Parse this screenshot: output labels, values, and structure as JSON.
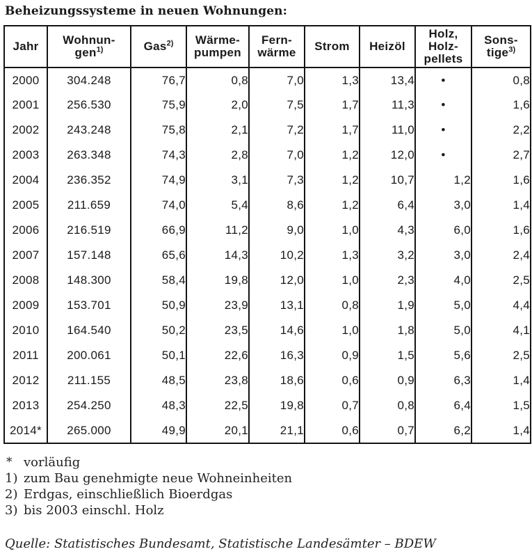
{
  "title": "Beheizungssysteme in neuen Wohnungen:",
  "table": {
    "columns": [
      {
        "key": "jahr",
        "label": "Jahr",
        "sup": ""
      },
      {
        "key": "wohnungen",
        "label": "Wohnun-\ngen",
        "sup": "1)"
      },
      {
        "key": "gas",
        "label": "Gas",
        "sup": "2)"
      },
      {
        "key": "waermepumpen",
        "label": "Wärme-\npumpen",
        "sup": ""
      },
      {
        "key": "fernwaerme",
        "label": "Fern-\nwärme",
        "sup": ""
      },
      {
        "key": "strom",
        "label": "Strom",
        "sup": ""
      },
      {
        "key": "heizoel",
        "label": "Heizöl",
        "sup": ""
      },
      {
        "key": "holz",
        "label": "Holz,\nHolz-\npellets",
        "sup": ""
      },
      {
        "key": "sonstige",
        "label": "Sons-\ntige",
        "sup": "3)"
      }
    ],
    "no_data_symbol": "•",
    "rows": [
      [
        "2000",
        "304.248",
        "76,7",
        "0,8",
        "7,0",
        "1,3",
        "13,4",
        "•",
        "0,8"
      ],
      [
        "2001",
        "256.530",
        "75,9",
        "2,0",
        "7,5",
        "1,7",
        "11,3",
        "•",
        "1,6"
      ],
      [
        "2002",
        "243.248",
        "75,8",
        "2,1",
        "7,2",
        "1,7",
        "11,0",
        "•",
        "2,2"
      ],
      [
        "2003",
        "263.348",
        "74,3",
        "2,8",
        "7,0",
        "1,2",
        "12,0",
        "•",
        "2,7"
      ],
      [
        "2004",
        "236.352",
        "74,9",
        "3,1",
        "7,3",
        "1,2",
        "10,7",
        "1,2",
        "1,6"
      ],
      [
        "2005",
        "211.659",
        "74,0",
        "5,4",
        "8,6",
        "1,2",
        "6,4",
        "3,0",
        "1,4"
      ],
      [
        "2006",
        "216.519",
        "66,9",
        "11,2",
        "9,0",
        "1,0",
        "4,3",
        "6,0",
        "1,6"
      ],
      [
        "2007",
        "157.148",
        "65,6",
        "14,3",
        "10,2",
        "1,3",
        "3,2",
        "3,0",
        "2,4"
      ],
      [
        "2008",
        "148.300",
        "58,4",
        "19,8",
        "12,0",
        "1,0",
        "2,3",
        "4,0",
        "2,5"
      ],
      [
        "2009",
        "153.701",
        "50,9",
        "23,9",
        "13,1",
        "0,8",
        "1,9",
        "5,0",
        "4,4"
      ],
      [
        "2010",
        "164.540",
        "50,2",
        "23,5",
        "14,6",
        "1,0",
        "1,8",
        "5,0",
        "4,1"
      ],
      [
        "2011",
        "200.061",
        "50,1",
        "22,6",
        "16,3",
        "0,9",
        "1,5",
        "5,6",
        "2,5"
      ],
      [
        "2012",
        "211.155",
        "48,5",
        "23,8",
        "18,6",
        "0,6",
        "0,9",
        "6,3",
        "1,4"
      ],
      [
        "2013",
        "254.250",
        "48,3",
        "22,5",
        "19,8",
        "0,7",
        "0,8",
        "6,4",
        "1,5"
      ],
      [
        "2014*",
        "265.000",
        "49,9",
        "20,1",
        "21,1",
        "0,6",
        "0,7",
        "6,2",
        "1,4"
      ]
    ]
  },
  "footnotes": [
    {
      "marker": "*",
      "text": "vorläufig"
    },
    {
      "marker": "1)",
      "text": "zum Bau genehmigte neue Wohneinheiten"
    },
    {
      "marker": "2)",
      "text": "Erdgas, einschließlich Bioerdgas"
    },
    {
      "marker": "3)",
      "text": "bis 2003 einschl. Holz"
    }
  ],
  "source": "Quelle: Statistisches Bundesamt, Statistische Landesämter – BDEW",
  "colors": {
    "text": "#1a1a1a",
    "border": "#141414",
    "background": "#ffffff"
  }
}
